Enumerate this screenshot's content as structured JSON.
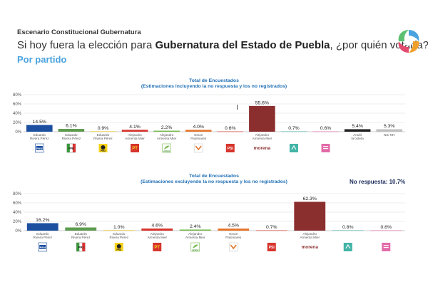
{
  "header": {
    "kicker": "Escenario Constitucional Gubernatura",
    "question_pre": "Si hoy fuera la elección para ",
    "question_bold": "Gubernatura del Estado de Puebla",
    "question_post": ", ¿por quién votaría?",
    "subtitle": "Por partido"
  },
  "colors": {
    "pan": "#1c4fa0",
    "pri": "#5d9b4e",
    "prd": "#e8c620",
    "pt": "#d6342c",
    "verde": "#74b84a",
    "psi": "#e4742c",
    "morena": "#8b2e2e",
    "mc": "#41b4a6",
    "pacto": "#e26aa8",
    "anulo": "#222222",
    "nsnr": "#bfbfbf",
    "accent": "#4aa3df"
  },
  "no_respuesta": "No respuesta: 10.7%",
  "chart_data": [
    {
      "type": "bar",
      "title": "Total de Encuestados",
      "subtitle": "(Estimaciones incluyendo la no respuesta y los no registrados)",
      "yticks": [
        "80%",
        "60%",
        "40%",
        "20%",
        "0%"
      ],
      "ylim": [
        0,
        80
      ],
      "categories": [
        "Eduardo Rivera Pérez",
        "Eduardo Rivera Pérez",
        "Eduardo Rivera Pérez",
        "Alejandro Armenta Mier",
        "Alejandro Armenta Mier",
        "Grace Palomares",
        "",
        "Alejandro Armenta Mier",
        "",
        "",
        "Anuló la boleta",
        "NS/ NR"
      ],
      "parties": [
        "PAN",
        "PRI",
        "PRD",
        "PT",
        "VERDE",
        "MORENA_G",
        "PSI",
        "morena",
        "MC",
        "PACTO",
        "",
        ""
      ],
      "values": [
        14.5,
        6.1,
        0.9,
        4.1,
        2.2,
        4.0,
        0.6,
        55.6,
        0.7,
        0.6,
        5.4,
        5.3
      ],
      "labels": [
        "14.5%",
        "6.1%",
        "0.9%",
        "4.1%",
        "2.2%",
        "4.0%",
        "0.6%",
        "55.6%",
        "0.7%",
        "0.6%",
        "5.4%",
        "5.3%"
      ],
      "color_keys": [
        "pan",
        "pri",
        "prd",
        "pt",
        "verde",
        "psi",
        "pt",
        "morena",
        "mc",
        "pacto",
        "anulo",
        "nsnr"
      ]
    },
    {
      "type": "bar",
      "title": "Total de Encuestados",
      "subtitle": "(Estimaciones excluyendo la no respuesta y los no registrados)",
      "yticks": [
        "80%",
        "60%",
        "40%",
        "20%",
        "0%"
      ],
      "ylim": [
        0,
        80
      ],
      "categories": [
        "Eduardo Rivera Pérez",
        "Eduardo Rivera Pérez",
        "Eduardo Rivera Pérez",
        "Alejandro Armenta Mier",
        "Alejandro Armenta Mier",
        "Grace Palomares",
        "",
        "Alejandro Armenta Mier",
        "",
        ""
      ],
      "parties": [
        "PAN",
        "PRI",
        "PRD",
        "PT",
        "VERDE",
        "MORENA_G",
        "PSI",
        "morena",
        "MC",
        "PACTO"
      ],
      "values": [
        16.2,
        6.9,
        1.0,
        4.6,
        2.4,
        4.5,
        0.7,
        62.3,
        0.8,
        0.6
      ],
      "labels": [
        "16.2%",
        "6.9%",
        "1.0%",
        "4.6%",
        "2.4%",
        "4.5%",
        "0.7%",
        "62.3%",
        "0.8%",
        "0.6%"
      ],
      "color_keys": [
        "pan",
        "pri",
        "prd",
        "pt",
        "verde",
        "psi",
        "pt",
        "morena",
        "mc",
        "pacto"
      ]
    }
  ]
}
